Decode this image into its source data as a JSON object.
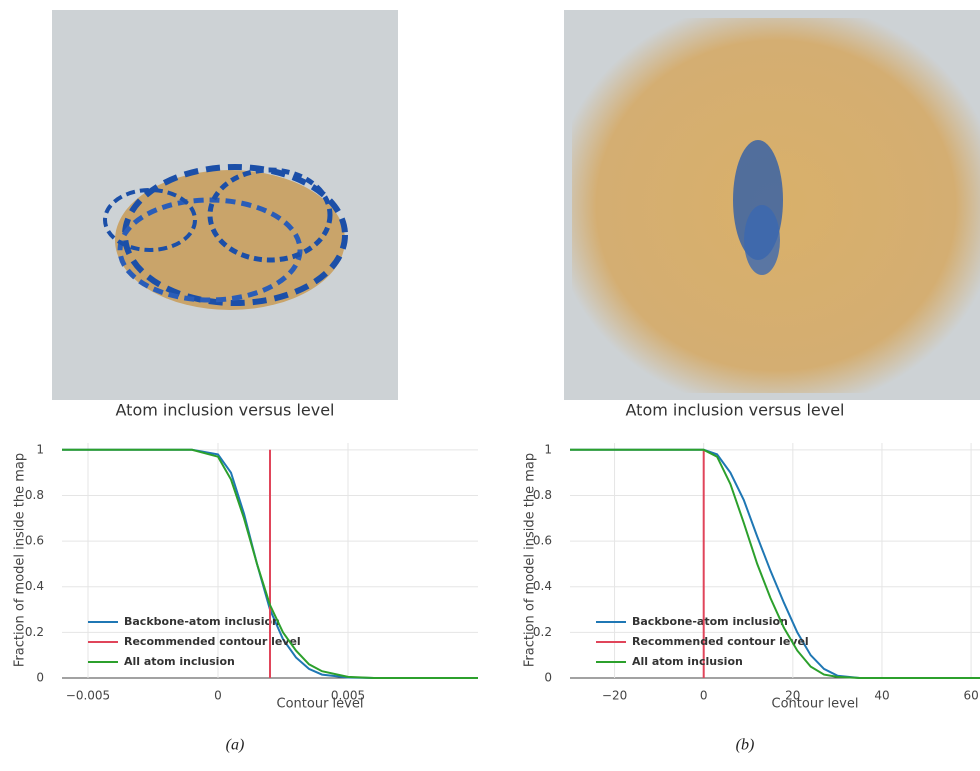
{
  "chart_data": [
    {
      "type": "line",
      "panel_label": "(a)",
      "title": "Atom inclusion versus level",
      "xlabel": "Contour level",
      "ylabel": "Fraction of model inside the map",
      "xlim": [
        -0.006,
        0.01
      ],
      "xticks": [
        {
          "value": -0.005,
          "label": "−0.005"
        },
        0,
        0.005
      ],
      "ylim": [
        0,
        1.03
      ],
      "yticks": [
        0,
        0.2,
        0.4,
        0.6,
        0.8,
        1
      ],
      "grid": true,
      "series": [
        {
          "name": "Backbone-atom inclusion",
          "color": "#1f77b4",
          "x": [
            -0.006,
            -0.004,
            -0.002,
            -0.001,
            0,
            0.0005,
            0.001,
            0.0015,
            0.002,
            0.0025,
            0.003,
            0.0035,
            0.004,
            0.005,
            0.006,
            0.008,
            0.01
          ],
          "values": [
            1,
            1,
            1,
            1,
            0.98,
            0.9,
            0.72,
            0.5,
            0.3,
            0.17,
            0.09,
            0.04,
            0.015,
            0.002,
            0,
            0,
            0
          ]
        },
        {
          "name": "Recommended contour level",
          "color": "#e0455a",
          "x": [
            0.002,
            0.002
          ],
          "values": [
            0,
            1
          ]
        },
        {
          "name": "All atom inclusion",
          "color": "#2ca02c",
          "x": [
            -0.006,
            -0.004,
            -0.002,
            -0.001,
            0,
            0.0005,
            0.001,
            0.0015,
            0.002,
            0.0025,
            0.003,
            0.0035,
            0.004,
            0.005,
            0.006,
            0.008,
            0.01
          ],
          "values": [
            1,
            1,
            1,
            1,
            0.97,
            0.87,
            0.7,
            0.5,
            0.32,
            0.2,
            0.12,
            0.06,
            0.03,
            0.005,
            0,
            0,
            0
          ]
        }
      ]
    },
    {
      "type": "line",
      "panel_label": "(b)",
      "title": "Atom inclusion versus level",
      "xlabel": "Contour level",
      "ylabel": "Fraction of model inside the map",
      "xlim": [
        -30,
        62
      ],
      "xticks": [
        {
          "value": -20,
          "label": "−20"
        },
        0,
        20,
        40,
        60
      ],
      "ylim": [
        0,
        1.03
      ],
      "yticks": [
        0,
        0.2,
        0.4,
        0.6,
        0.8,
        1
      ],
      "grid": true,
      "series": [
        {
          "name": "Backbone-atom inclusion",
          "color": "#1f77b4",
          "x": [
            -30,
            -10,
            0,
            3,
            6,
            9,
            12,
            15,
            18,
            21,
            24,
            27,
            30,
            35,
            40,
            50,
            62
          ],
          "values": [
            1,
            1,
            1,
            0.98,
            0.9,
            0.78,
            0.62,
            0.47,
            0.33,
            0.2,
            0.1,
            0.04,
            0.01,
            0,
            0,
            0,
            0
          ]
        },
        {
          "name": "Recommended contour level",
          "color": "#e0455a",
          "x": [
            0,
            0
          ],
          "values": [
            0,
            1
          ]
        },
        {
          "name": "All atom inclusion",
          "color": "#2ca02c",
          "x": [
            -30,
            -10,
            0,
            3,
            6,
            9,
            12,
            15,
            18,
            21,
            24,
            27,
            30,
            35,
            40,
            50,
            62
          ],
          "values": [
            1,
            1,
            1,
            0.97,
            0.85,
            0.68,
            0.5,
            0.35,
            0.22,
            0.12,
            0.05,
            0.015,
            0.005,
            0,
            0,
            0,
            0
          ]
        }
      ]
    }
  ]
}
